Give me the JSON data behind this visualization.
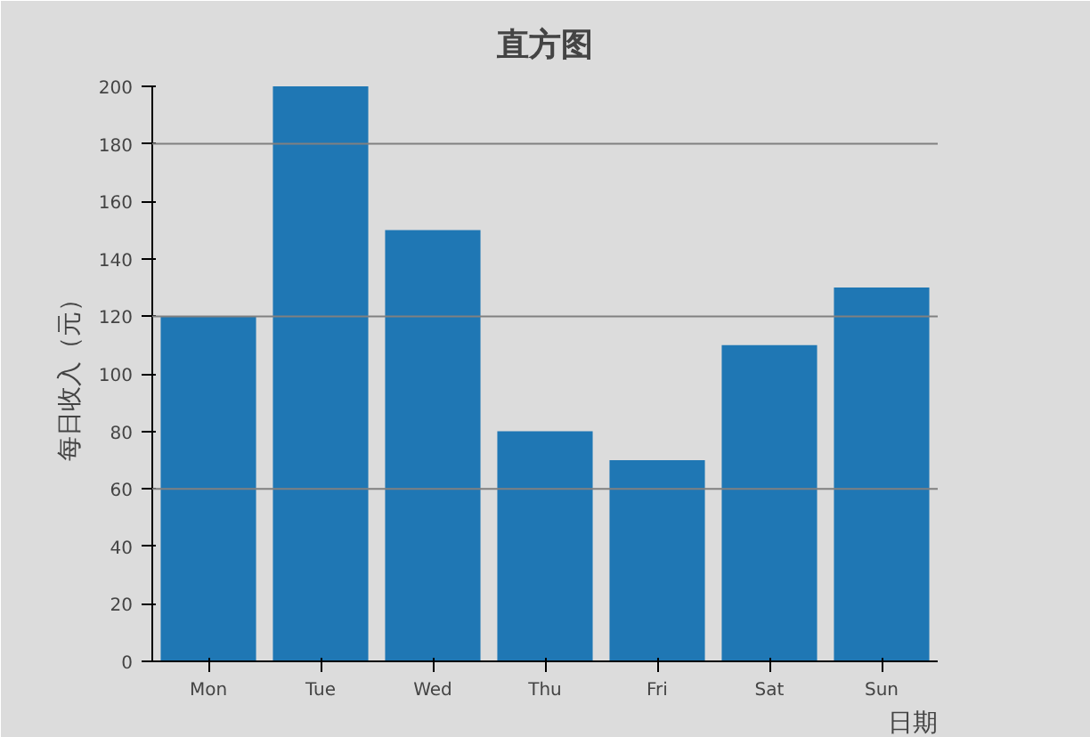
{
  "chart_data": {
    "type": "bar",
    "title": "直方图",
    "xlabel": "日期",
    "ylabel": "每日收入（元）",
    "categories": [
      "Mon",
      "Tue",
      "Wed",
      "Thu",
      "Fri",
      "Sat",
      "Sun"
    ],
    "values": [
      120,
      200,
      150,
      80,
      70,
      110,
      130
    ],
    "color": "#1f77b4",
    "ylim": [
      0,
      200
    ],
    "yticks": [
      0,
      20,
      40,
      60,
      80,
      100,
      120,
      140,
      160,
      180,
      200
    ],
    "ref_lines": [
      {
        "axis": "y",
        "value": 60,
        "color": "#808080"
      },
      {
        "axis": "y",
        "value": 120,
        "color": "#808080"
      },
      {
        "axis": "y",
        "value": 180,
        "color": "#808080"
      }
    ],
    "grid": false
  }
}
